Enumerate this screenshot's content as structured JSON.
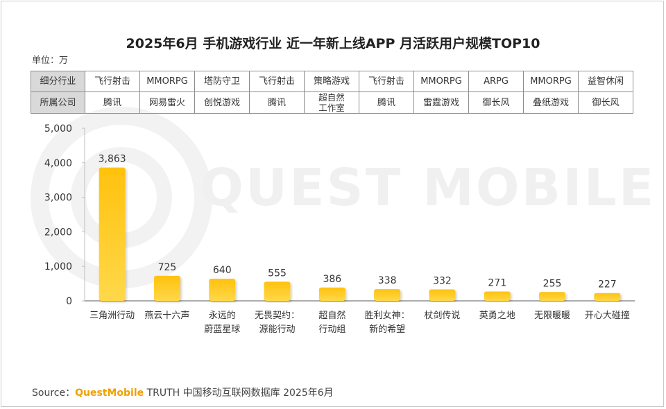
{
  "title": "2025年6月 手机游戏行业 近一年新上线APP 月活跃用户规模TOP10",
  "unit_label": "单位：万",
  "watermark": "QUEST MOBILE",
  "table": {
    "row_headers": [
      "细分行业",
      "所属公司"
    ],
    "industry": [
      "飞行射击",
      "MMORPG",
      "塔防守卫",
      "飞行射击",
      "策略游戏",
      "飞行射击",
      "MMORPG",
      "ARPG",
      "MMORPG",
      "益智休闲"
    ],
    "company": [
      "腾讯",
      "网易雷火",
      "创悦游戏",
      "腾讯",
      "超自然\n工作室",
      "腾讯",
      "雷霆游戏",
      "御长风",
      "叠纸游戏",
      "御长风"
    ]
  },
  "chart_data": {
    "type": "bar",
    "categories": [
      "三角洲行动",
      "燕云十六声",
      "永远的\n蔚蓝星球",
      "无畏契约：\n源能行动",
      "超自然\n行动组",
      "胜利女神：\n新的希望",
      "杖剑传说",
      "英勇之地",
      "无限暖暖",
      "开心大碰撞"
    ],
    "values": [
      3863,
      725,
      640,
      555,
      386,
      338,
      332,
      271,
      255,
      227
    ],
    "value_labels": [
      "3,863",
      "725",
      "640",
      "555",
      "386",
      "338",
      "332",
      "271",
      "255",
      "227"
    ],
    "ylim": [
      0,
      5000
    ],
    "yticks": [
      0,
      1000,
      2000,
      3000,
      4000,
      5000
    ],
    "ytick_labels": [
      "0",
      "1,000",
      "2,000",
      "3,000",
      "4,000",
      "5,000"
    ],
    "xlabel": "",
    "ylabel": "",
    "bar_color_top": "#ffc20e",
    "bar_color_bottom": "#ffd84a"
  },
  "source": {
    "prefix": "Source：",
    "brand": "QuestMobile",
    "suffix": " TRUTH 中国移动互联网数据库 2025年6月"
  }
}
